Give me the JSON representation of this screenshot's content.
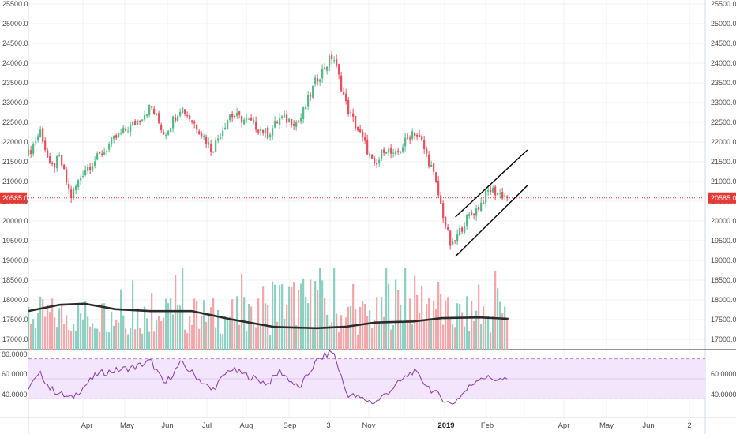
{
  "colors": {
    "up_candle": "#53b987",
    "down_candle": "#eb4d5c",
    "up_volume": "#8ccfc0",
    "down_volume": "#f4a5a8",
    "volume_ma": "#2b2b2b",
    "rsi_line": "#8e44ad",
    "rsi_band": "#f3e6fc",
    "price_line": "#e53935",
    "channel": "#000000",
    "grid": "#eef1f4"
  },
  "price_axis": {
    "ticks": [
      "25500.0",
      "25000.0",
      "24500.0",
      "24000.0",
      "23500.0",
      "23000.0",
      "22500.0",
      "22000.0",
      "21500.0",
      "21000.0",
      "20500.0",
      "20000.0",
      "19500.0",
      "19000.0",
      "18500.0",
      "18000.0",
      "17500.0",
      "17000.0"
    ],
    "last_price_label": "20585.0"
  },
  "rsi_axis": {
    "left_ticks": [
      "80.0000",
      "60.0000",
      "40.0000"
    ],
    "right_ticks": [
      "60.0000",
      "40.0000"
    ]
  },
  "time_axis": {
    "labels": [
      "Apr",
      "May",
      "Jun",
      "Jul",
      "Aug",
      "Sep",
      "3",
      "Nov",
      "2019",
      "Feb",
      "Apr",
      "May",
      "Jun",
      "2"
    ],
    "bold_label": "2019"
  },
  "chart_data": {
    "type": "candlestick",
    "period": "daily",
    "x_range": [
      "2018-02",
      "2019-07"
    ],
    "price_ylim": [
      17000,
      25500
    ],
    "last_price": 20585,
    "close_path": [
      {
        "x": "2018-02-20",
        "close": 21700
      },
      {
        "x": "2018-03-01",
        "close": 22300
      },
      {
        "x": "2018-03-08",
        "close": 21300
      },
      {
        "x": "2018-03-15",
        "close": 21600
      },
      {
        "x": "2018-03-23",
        "close": 20600
      },
      {
        "x": "2018-04-02",
        "close": 21300
      },
      {
        "x": "2018-04-12",
        "close": 21600
      },
      {
        "x": "2018-04-25",
        "close": 22100
      },
      {
        "x": "2018-05-10",
        "close": 22500
      },
      {
        "x": "2018-05-21",
        "close": 22900
      },
      {
        "x": "2018-05-31",
        "close": 22200
      },
      {
        "x": "2018-06-12",
        "close": 22900
      },
      {
        "x": "2018-06-26",
        "close": 22300
      },
      {
        "x": "2018-07-05",
        "close": 21800
      },
      {
        "x": "2018-07-18",
        "close": 22700
      },
      {
        "x": "2018-08-02",
        "close": 22500
      },
      {
        "x": "2018-08-15",
        "close": 22200
      },
      {
        "x": "2018-08-24",
        "close": 22600
      },
      {
        "x": "2018-09-07",
        "close": 22500
      },
      {
        "x": "2018-09-20",
        "close": 23600
      },
      {
        "x": "2018-10-02",
        "close": 24200
      },
      {
        "x": "2018-10-12",
        "close": 22900
      },
      {
        "x": "2018-10-26",
        "close": 21900
      },
      {
        "x": "2018-11-02",
        "close": 21300
      },
      {
        "x": "2018-11-09",
        "close": 21900
      },
      {
        "x": "2018-11-16",
        "close": 21600
      },
      {
        "x": "2018-11-30",
        "close": 22300
      },
      {
        "x": "2018-12-06",
        "close": 22000
      },
      {
        "x": "2018-12-14",
        "close": 21300
      },
      {
        "x": "2018-12-21",
        "close": 20300
      },
      {
        "x": "2018-12-28",
        "close": 19300
      },
      {
        "x": "2019-01-07",
        "close": 20000
      },
      {
        "x": "2019-01-18",
        "close": 20400
      },
      {
        "x": "2019-01-25",
        "close": 20800
      },
      {
        "x": "2019-02-01",
        "close": 20700
      },
      {
        "x": "2019-02-08",
        "close": 20585
      }
    ],
    "channel": [
      {
        "name": "upper",
        "from": {
          "x": "2018-12-31",
          "y": 20100
        },
        "to": {
          "x": "2019-02-22",
          "y": 21800
        }
      },
      {
        "name": "lower",
        "from": {
          "x": "2018-12-31",
          "y": 19100
        },
        "to": {
          "x": "2019-02-22",
          "y": 20900
        }
      }
    ],
    "volume": {
      "ma_path": [
        {
          "x": "2018-02-20",
          "y": 17550
        },
        {
          "x": "2018-03-15",
          "y": 17720
        },
        {
          "x": "2018-04-02",
          "y": 17750
        },
        {
          "x": "2018-04-25",
          "y": 17600
        },
        {
          "x": "2018-05-21",
          "y": 17550
        },
        {
          "x": "2018-06-20",
          "y": 17550
        },
        {
          "x": "2018-07-20",
          "y": 17320
        },
        {
          "x": "2018-08-20",
          "y": 17120
        },
        {
          "x": "2018-09-20",
          "y": 17090
        },
        {
          "x": "2018-10-12",
          "y": 17130
        },
        {
          "x": "2018-11-02",
          "y": 17240
        },
        {
          "x": "2018-11-30",
          "y": 17270
        },
        {
          "x": "2018-12-21",
          "y": 17360
        },
        {
          "x": "2019-01-18",
          "y": 17380
        },
        {
          "x": "2019-02-08",
          "y": 17340
        }
      ]
    },
    "rsi": {
      "ylim": [
        20,
        80
      ],
      "bands": [
        70,
        30
      ],
      "path": [
        {
          "x": "2018-02-20",
          "y": 42
        },
        {
          "x": "2018-03-01",
          "y": 55
        },
        {
          "x": "2018-03-08",
          "y": 40
        },
        {
          "x": "2018-03-23",
          "y": 30
        },
        {
          "x": "2018-04-12",
          "y": 55
        },
        {
          "x": "2018-05-10",
          "y": 62
        },
        {
          "x": "2018-05-21",
          "y": 68
        },
        {
          "x": "2018-05-31",
          "y": 44
        },
        {
          "x": "2018-06-12",
          "y": 66
        },
        {
          "x": "2018-07-05",
          "y": 38
        },
        {
          "x": "2018-07-18",
          "y": 60
        },
        {
          "x": "2018-08-15",
          "y": 45
        },
        {
          "x": "2018-08-24",
          "y": 58
        },
        {
          "x": "2018-09-07",
          "y": 40
        },
        {
          "x": "2018-09-20",
          "y": 68
        },
        {
          "x": "2018-10-02",
          "y": 78
        },
        {
          "x": "2018-10-12",
          "y": 35
        },
        {
          "x": "2018-11-02",
          "y": 26
        },
        {
          "x": "2018-11-30",
          "y": 58
        },
        {
          "x": "2018-12-14",
          "y": 38
        },
        {
          "x": "2018-12-28",
          "y": 24
        },
        {
          "x": "2019-01-18",
          "y": 52
        },
        {
          "x": "2019-02-08",
          "y": 48
        }
      ]
    }
  }
}
